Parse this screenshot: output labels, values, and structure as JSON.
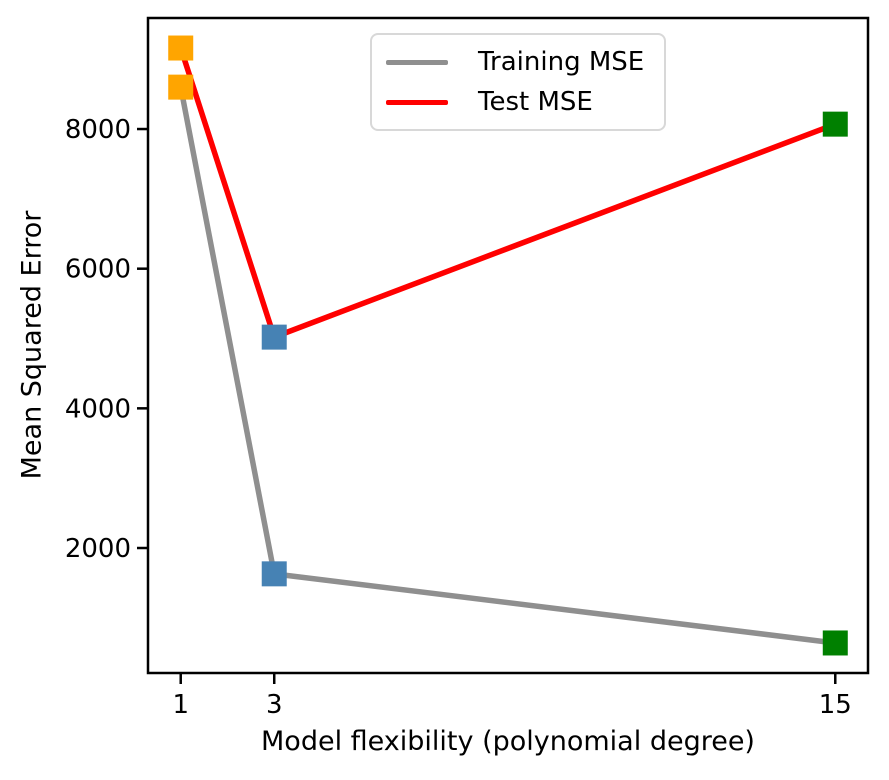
{
  "chart_data": {
    "type": "line",
    "title": "",
    "xlabel": "Model flexibility (polynomial degree)",
    "ylabel": "Mean Squared Error",
    "x": [
      1,
      3,
      15
    ],
    "series": [
      {
        "name": "Training MSE",
        "color": "#8f8f8f",
        "values": [
          8600,
          1630,
          640
        ]
      },
      {
        "name": "Test MSE",
        "color": "#ff0000",
        "values": [
          9160,
          5020,
          8070
        ]
      }
    ],
    "marker": "square",
    "marker_colors_by_flexibility": [
      "#ffa500",
      "#4682b4",
      "#008000"
    ],
    "xticks": [
      1,
      3,
      15
    ],
    "yticks": [
      2000,
      4000,
      6000,
      8000
    ],
    "xlim": [
      0.3,
      15.7
    ],
    "ylim": [
      210,
      9590
    ],
    "grid": false,
    "legend_position": "upper center",
    "axis_color": "#000000",
    "background_color": "#ffffff"
  }
}
